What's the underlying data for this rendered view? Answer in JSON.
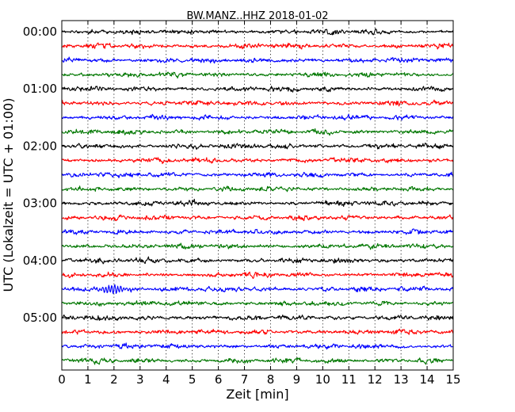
{
  "chart_data": {
    "type": "line",
    "title": "BW.MANZ..HHZ 2018-01-02",
    "xlabel": "Zeit  [min]",
    "ylabel": "UTC (Lokalzeit = UTC + 01:00)",
    "xlim": [
      0,
      15
    ],
    "x_ticks": [
      "0",
      "1",
      "2",
      "3",
      "4",
      "5",
      "6",
      "7",
      "8",
      "9",
      "10",
      "11",
      "12",
      "13",
      "14",
      "15"
    ],
    "y_tick_labels": [
      "00:00",
      "01:00",
      "02:00",
      "03:00",
      "04:00",
      "05:00"
    ],
    "grid": "vertical dotted",
    "trace_colors": [
      "#000000",
      "#ff0000",
      "#0000ff",
      "#007700"
    ],
    "trace_start_times": [
      "00:00",
      "00:15",
      "00:30",
      "00:45",
      "01:00",
      "01:15",
      "01:30",
      "01:45",
      "02:00",
      "02:15",
      "02:30",
      "02:45",
      "03:00",
      "03:15",
      "03:30",
      "03:45",
      "04:00",
      "04:15",
      "04:30",
      "04:45",
      "05:00",
      "05:15",
      "05:30",
      "05:45"
    ],
    "trace_count": 24,
    "events": [
      {
        "trace": "04:30",
        "minute": 2.0,
        "relative_amplitude": 2.4
      }
    ]
  }
}
